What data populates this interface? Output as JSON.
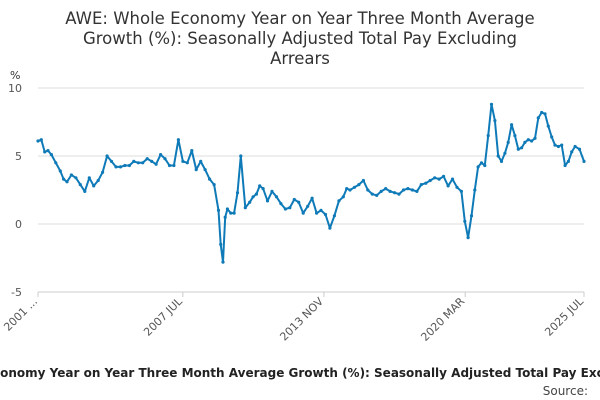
{
  "chart_data": {
    "type": "line",
    "title_lines": [
      "AWE: Whole Economy Year on Year Three Month Average",
      "Growth (%): Seasonally Adjusted Total Pay Excluding",
      "Arrears"
    ],
    "ylabel": "%",
    "ylim": [
      -5,
      10
    ],
    "yticks": [
      {
        "label": "10",
        "value": 10
      },
      {
        "label": "5",
        "value": 5
      },
      {
        "label": "0",
        "value": 0
      },
      {
        "label": "-5",
        "value": -5
      }
    ],
    "xlim": [
      2001.0,
      2025.5
    ],
    "xticks": [
      {
        "label": "2001 ...",
        "value": 2001.0
      },
      {
        "label": "2007 JUL",
        "value": 2007.5
      },
      {
        "label": "2013 NOV",
        "value": 2013.83
      },
      {
        "label": "2020 MAR",
        "value": 2020.17
      },
      {
        "label": "2025 JUL",
        "value": 2025.5
      }
    ],
    "series": [
      {
        "name": "AWE: Whole Economy Year on Year Three Month Average Growth (%): Seasonally Adjusted Total Pay Excluding Arrears",
        "color": "#0f7ab8",
        "x": [
          2001.0,
          2001.15,
          2001.3,
          2001.45,
          2001.6,
          2001.8,
          2002.0,
          2002.15,
          2002.3,
          2002.5,
          2002.7,
          2002.9,
          2003.1,
          2003.3,
          2003.5,
          2003.7,
          2003.9,
          2004.1,
          2004.3,
          2004.5,
          2004.7,
          2004.9,
          2005.1,
          2005.3,
          2005.5,
          2005.7,
          2005.9,
          2006.1,
          2006.3,
          2006.5,
          2006.7,
          2006.9,
          2007.1,
          2007.3,
          2007.5,
          2007.7,
          2007.9,
          2008.1,
          2008.3,
          2008.5,
          2008.7,
          2008.9,
          2009.1,
          2009.2,
          2009.3,
          2009.4,
          2009.5,
          2009.65,
          2009.8,
          2009.95,
          2010.1,
          2010.3,
          2010.5,
          2010.65,
          2010.8,
          2010.95,
          2011.1,
          2011.3,
          2011.5,
          2011.7,
          2011.9,
          2012.1,
          2012.3,
          2012.5,
          2012.7,
          2012.9,
          2013.1,
          2013.3,
          2013.5,
          2013.7,
          2013.9,
          2014.1,
          2014.3,
          2014.5,
          2014.7,
          2014.85,
          2015.0,
          2015.2,
          2015.4,
          2015.6,
          2015.8,
          2016.0,
          2016.2,
          2016.4,
          2016.6,
          2016.8,
          2017.0,
          2017.2,
          2017.4,
          2017.6,
          2017.8,
          2018.0,
          2018.2,
          2018.4,
          2018.6,
          2018.8,
          2019.0,
          2019.2,
          2019.4,
          2019.6,
          2019.8,
          2020.0,
          2020.15,
          2020.3,
          2020.45,
          2020.6,
          2020.75,
          2020.9,
          2021.05,
          2021.2,
          2021.35,
          2021.5,
          2021.65,
          2021.8,
          2021.95,
          2022.1,
          2022.25,
          2022.4,
          2022.55,
          2022.7,
          2022.85,
          2023.0,
          2023.15,
          2023.3,
          2023.45,
          2023.6,
          2023.75,
          2023.9,
          2024.05,
          2024.2,
          2024.35,
          2024.5,
          2024.65,
          2024.8,
          2024.95,
          2025.1,
          2025.3,
          2025.5
        ],
        "values": [
          6.1,
          6.2,
          5.3,
          5.4,
          5.1,
          4.5,
          3.9,
          3.3,
          3.1,
          3.6,
          3.4,
          2.9,
          2.4,
          3.4,
          2.8,
          3.2,
          3.8,
          5.0,
          4.6,
          4.2,
          4.2,
          4.3,
          4.3,
          4.6,
          4.5,
          4.5,
          4.8,
          4.6,
          4.4,
          5.1,
          4.8,
          4.3,
          4.3,
          6.2,
          4.6,
          4.5,
          5.4,
          4.0,
          4.6,
          4.0,
          3.3,
          2.9,
          1.0,
          -1.5,
          -2.8,
          0.5,
          1.1,
          0.8,
          0.8,
          2.3,
          5.0,
          1.2,
          1.6,
          2.0,
          2.2,
          2.8,
          2.6,
          1.7,
          2.4,
          2.0,
          1.5,
          1.1,
          1.2,
          1.8,
          1.6,
          0.8,
          1.3,
          1.9,
          0.8,
          1.0,
          0.7,
          -0.3,
          0.6,
          1.7,
          2.0,
          2.6,
          2.5,
          2.7,
          2.9,
          3.2,
          2.5,
          2.2,
          2.1,
          2.4,
          2.6,
          2.4,
          2.3,
          2.2,
          2.5,
          2.6,
          2.5,
          2.4,
          2.9,
          3.0,
          3.2,
          3.4,
          3.3,
          3.5,
          2.8,
          3.3,
          2.7,
          2.4,
          0.2,
          -1.0,
          0.6,
          2.5,
          4.2,
          4.5,
          4.3,
          6.5,
          8.8,
          7.6,
          5.0,
          4.6,
          5.2,
          6.0,
          7.3,
          6.5,
          5.5,
          5.6,
          6.0,
          6.2,
          6.1,
          6.3,
          7.8,
          8.2,
          8.1,
          7.2,
          6.4,
          5.8,
          5.7,
          5.8,
          4.3,
          4.6,
          5.3,
          5.7,
          5.5,
          4.6
        ]
      }
    ]
  },
  "legend": {
    "text": "AWE: Whole Economy Year on Year Three Month Average Growth (%): Seasonally Adjusted Total Pay Excluding Arrears"
  },
  "source_label": "Source:"
}
